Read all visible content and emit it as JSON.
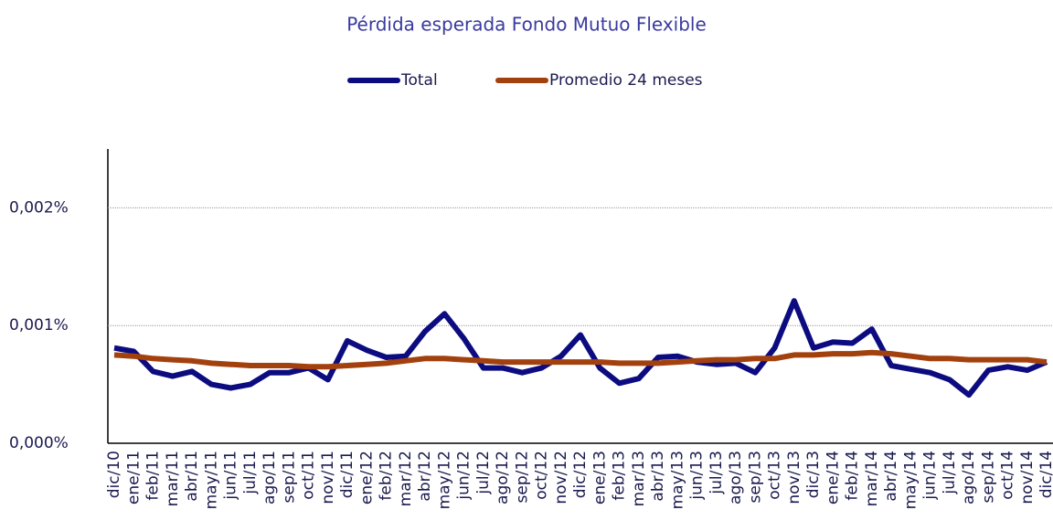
{
  "chart_data": {
    "type": "line",
    "title": "Pérdida esperada Fondo Mutuo Flexible",
    "categories": [
      "dic/10",
      "ene/11",
      "feb/11",
      "mar/11",
      "abr/11",
      "may/11",
      "jun/11",
      "jul/11",
      "ago/11",
      "sep/11",
      "oct/11",
      "nov/11",
      "dic/11",
      "ene/12",
      "feb/12",
      "mar/12",
      "abr/12",
      "may/12",
      "jun/12",
      "jul/12",
      "ago/12",
      "sep/12",
      "oct/12",
      "nov/12",
      "dic/12",
      "ene/13",
      "feb/13",
      "mar/13",
      "abr/13",
      "may/13",
      "jun/13",
      "jul/13",
      "ago/13",
      "sep/13",
      "oct/13",
      "nov/13",
      "dic/13",
      "ene/14",
      "feb/14",
      "mar/14",
      "abr/14",
      "may/14",
      "jun/14",
      "jul/14",
      "ago/14",
      "sep/14",
      "oct/14",
      "nov/14",
      "dic/14"
    ],
    "series": [
      {
        "name": "Total",
        "color": "#0c0c80",
        "values": [
          0.00081,
          0.00078,
          0.00061,
          0.00057,
          0.00061,
          0.0005,
          0.00047,
          0.0005,
          0.0006,
          0.0006,
          0.00064,
          0.00054,
          0.00087,
          0.00079,
          0.00073,
          0.00074,
          0.00095,
          0.0011,
          0.00089,
          0.00064,
          0.00064,
          0.0006,
          0.00064,
          0.00074,
          0.00092,
          0.00064,
          0.00051,
          0.00055,
          0.00073,
          0.00074,
          0.00069,
          0.00067,
          0.00068,
          0.0006,
          0.00081,
          0.00121,
          0.00081,
          0.00086,
          0.00085,
          0.00097,
          0.00066,
          0.00063,
          0.0006,
          0.00054,
          0.00041,
          0.00062,
          0.00065,
          0.00062,
          0.00069
        ]
      },
      {
        "name": "Promedio 24 meses",
        "color": "#a3410e",
        "values": [
          0.00075,
          0.00074,
          0.00072,
          0.00071,
          0.0007,
          0.00068,
          0.00067,
          0.00066,
          0.00066,
          0.00066,
          0.00065,
          0.00065,
          0.00066,
          0.00067,
          0.00068,
          0.0007,
          0.00072,
          0.00072,
          0.00071,
          0.0007,
          0.00069,
          0.00069,
          0.00069,
          0.00069,
          0.00069,
          0.00069,
          0.00068,
          0.00068,
          0.00068,
          0.00069,
          0.0007,
          0.00071,
          0.00071,
          0.00072,
          0.00072,
          0.00075,
          0.00075,
          0.00076,
          0.00076,
          0.00077,
          0.00076,
          0.00074,
          0.00072,
          0.00072,
          0.00071,
          0.00071,
          0.00071,
          0.00071,
          0.00069
        ]
      }
    ],
    "ylim": [
      0,
      0.0025
    ],
    "yticks": [
      {
        "value": 0,
        "label": "0,000%"
      },
      {
        "value": 0.001,
        "label": "0,001%"
      },
      {
        "value": 0.002,
        "label": "0,002%"
      }
    ],
    "grid": true
  }
}
